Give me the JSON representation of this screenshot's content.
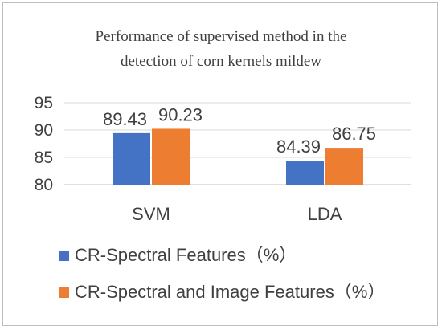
{
  "chart_data": {
    "type": "bar",
    "title_lines": [
      "Performance of supervised method in the",
      "detection of  corn kernels mildew"
    ],
    "categories": [
      "SVM",
      "LDA"
    ],
    "series": [
      {
        "name": "CR-Spectral Features（%）",
        "values": [
          89.43,
          84.39
        ],
        "color": "#4472C4"
      },
      {
        "name": "CR-Spectral and Image Features（%）",
        "values": [
          90.23,
          86.75
        ],
        "color": "#ED7D31"
      }
    ],
    "data_labels": [
      [
        "89.43",
        "84.39"
      ],
      [
        "90.23",
        "86.75"
      ]
    ],
    "yticks": [
      "80",
      "85",
      "90",
      "95"
    ],
    "ylim": [
      80,
      95
    ],
    "grid": true,
    "legend_position": "bottom"
  }
}
